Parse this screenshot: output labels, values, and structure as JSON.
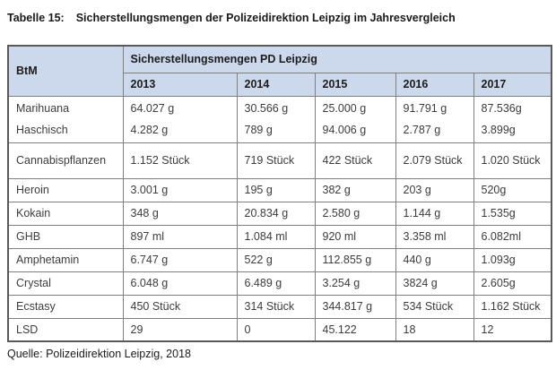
{
  "page": {
    "title_prefix": "Tabelle 15:",
    "title_text": "Sicherstellungsmengen der Polizeidirektion Leipzig im Jahresvergleich",
    "source": "Quelle: Polizeidirektion Leipzig, 2018"
  },
  "colors": {
    "header_bg": "#ccd8eb",
    "border_inner": "#7f7f7f",
    "border_outer": "#595959",
    "body_text": "#3c3c3c"
  },
  "table": {
    "corner_header": "BtM",
    "group_header": "Sicherstellungsmengen PD Leipzig",
    "years": [
      "2013",
      "2014",
      "2015",
      "2016",
      "2017"
    ],
    "groups": [
      {
        "rows": [
          {
            "label": "Marihuana",
            "values": [
              "64.027 g",
              "30.566 g",
              "25.000 g",
              "91.791 g",
              "87.536g"
            ]
          },
          {
            "label": "Haschisch",
            "values": [
              "4.282 g",
              "789 g",
              "94.006 g",
              "2.787 g",
              "3.899g"
            ]
          }
        ]
      },
      {
        "rows": [
          {
            "label": "Cannabispflanzen",
            "values": [
              "1.152 Stück",
              "719 Stück",
              "422 Stück",
              "2.079 Stück",
              "1.020 Stück"
            ]
          }
        ]
      },
      {
        "rows": [
          {
            "label": "Heroin",
            "values": [
              "3.001 g",
              "195 g",
              "382 g",
              "203 g",
              "520g"
            ]
          }
        ]
      },
      {
        "rows": [
          {
            "label": "Kokain",
            "values": [
              "348 g",
              "20.834 g",
              "2.580 g",
              "1.144 g",
              "1.535g"
            ]
          }
        ]
      },
      {
        "rows": [
          {
            "label": "GHB",
            "values": [
              "897 ml",
              "1.084 ml",
              "920 ml",
              "3.358 ml",
              "6.082ml"
            ]
          }
        ]
      },
      {
        "rows": [
          {
            "label": "Amphetamin",
            "values": [
              "6.747 g",
              "522 g",
              "112.855 g",
              "440 g",
              "1.093g"
            ]
          }
        ]
      },
      {
        "rows": [
          {
            "label": "Crystal",
            "values": [
              "6.048 g",
              "6.489 g",
              "3.254 g",
              "3824 g",
              "2.605g"
            ]
          }
        ]
      },
      {
        "rows": [
          {
            "label": "Ecstasy",
            "values": [
              "450 Stück",
              "314 Stück",
              "344.817 g",
              "534 Stück",
              "1.162 Stück"
            ]
          }
        ]
      },
      {
        "rows": [
          {
            "label": "LSD",
            "values": [
              "29",
              "0",
              "45.122",
              "18",
              "12"
            ]
          }
        ]
      }
    ]
  }
}
